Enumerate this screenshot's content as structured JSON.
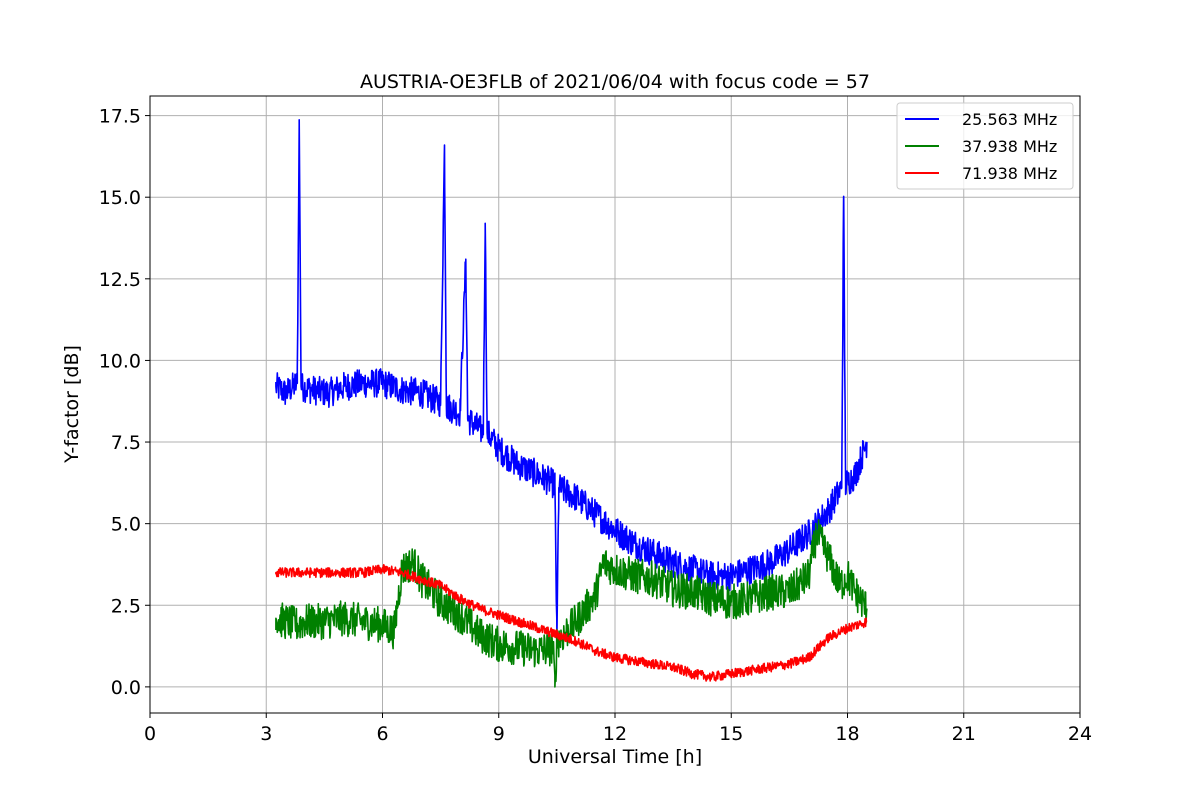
{
  "chart_data": {
    "type": "line",
    "title": "AUSTRIA-OE3FLB of 2021/06/04 with focus code = 57",
    "xlabel": "Universal Time [h]",
    "ylabel": "Y-factor [dB]",
    "xlim": [
      0,
      24
    ],
    "ylim": [
      -0.8,
      18.1
    ],
    "xticks": [
      0,
      3,
      6,
      9,
      12,
      15,
      18,
      21,
      24
    ],
    "xtick_labels": [
      "0",
      "3",
      "6",
      "9",
      "12",
      "15",
      "18",
      "21",
      "24"
    ],
    "yticks": [
      0.0,
      2.5,
      5.0,
      7.5,
      10.0,
      12.5,
      15.0,
      17.5
    ],
    "ytick_labels": [
      "0.0",
      "2.5",
      "5.0",
      "7.5",
      "10.0",
      "12.5",
      "15.0",
      "17.5"
    ],
    "grid": true,
    "legend_position": "top-right",
    "series": [
      {
        "name": "25.563 MHz",
        "color": "#0000ff",
        "x": [
          3.25,
          3.5,
          3.8,
          3.85,
          3.9,
          4.2,
          4.6,
          5.0,
          5.5,
          6.0,
          6.5,
          7.0,
          7.5,
          7.6,
          7.65,
          8.0,
          8.15,
          8.2,
          8.6,
          8.65,
          8.7,
          9.0,
          9.5,
          10.0,
          10.45,
          10.5,
          10.55,
          11.0,
          11.5,
          12.0,
          12.5,
          13.0,
          13.5,
          14.0,
          14.5,
          15.0,
          15.5,
          16.0,
          16.5,
          17.0,
          17.5,
          17.85,
          17.9,
          17.95,
          18.2,
          18.5
        ],
        "y": [
          9.2,
          9.0,
          9.3,
          17.2,
          9.2,
          9.1,
          9.0,
          9.2,
          9.3,
          9.3,
          9.1,
          9.0,
          8.7,
          16.6,
          8.6,
          8.4,
          13.1,
          8.2,
          7.8,
          14.2,
          7.8,
          7.3,
          6.8,
          6.5,
          6.2,
          1.5,
          6.1,
          5.8,
          5.3,
          4.8,
          4.4,
          4.1,
          3.8,
          3.6,
          3.4,
          3.4,
          3.6,
          3.8,
          4.2,
          4.7,
          5.4,
          6.1,
          15.0,
          6.2,
          6.5,
          7.5
        ]
      },
      {
        "name": "37.938 MHz",
        "color": "#008000",
        "x": [
          3.25,
          3.5,
          3.8,
          4.0,
          4.5,
          5.0,
          5.5,
          6.0,
          6.3,
          6.5,
          6.8,
          7.0,
          7.5,
          8.0,
          8.5,
          9.0,
          9.5,
          10.0,
          10.4,
          10.45,
          10.5,
          11.0,
          11.5,
          11.7,
          12.0,
          12.5,
          13.0,
          13.5,
          14.0,
          14.5,
          15.0,
          15.5,
          16.0,
          16.5,
          17.0,
          17.2,
          17.5,
          17.8,
          18.0,
          18.2,
          18.5
        ],
        "y": [
          2.1,
          2.0,
          1.9,
          2.0,
          2.0,
          2.1,
          2.0,
          1.9,
          1.7,
          3.6,
          3.8,
          3.3,
          2.6,
          2.2,
          1.6,
          1.3,
          1.2,
          1.1,
          1.2,
          0.0,
          1.4,
          2.0,
          2.8,
          3.8,
          3.6,
          3.4,
          3.3,
          3.0,
          2.9,
          2.7,
          2.6,
          2.7,
          2.9,
          2.9,
          3.4,
          4.7,
          4.0,
          3.1,
          3.4,
          2.9,
          2.4
        ]
      },
      {
        "name": "71.938 MHz",
        "color": "#ff0000",
        "x": [
          3.25,
          3.5,
          4.0,
          4.5,
          5.0,
          5.5,
          6.0,
          6.5,
          7.0,
          7.5,
          8.0,
          8.5,
          9.0,
          9.5,
          10.0,
          10.5,
          11.0,
          11.5,
          12.0,
          12.5,
          13.0,
          13.5,
          14.0,
          14.5,
          15.0,
          15.5,
          16.0,
          16.5,
          17.0,
          17.5,
          18.0,
          18.5
        ],
        "y": [
          3.5,
          3.5,
          3.5,
          3.5,
          3.5,
          3.5,
          3.6,
          3.5,
          3.3,
          3.1,
          2.7,
          2.4,
          2.2,
          2.0,
          1.8,
          1.6,
          1.4,
          1.1,
          0.9,
          0.8,
          0.7,
          0.6,
          0.4,
          0.3,
          0.4,
          0.5,
          0.6,
          0.7,
          0.9,
          1.5,
          1.8,
          2.0
        ]
      }
    ]
  }
}
